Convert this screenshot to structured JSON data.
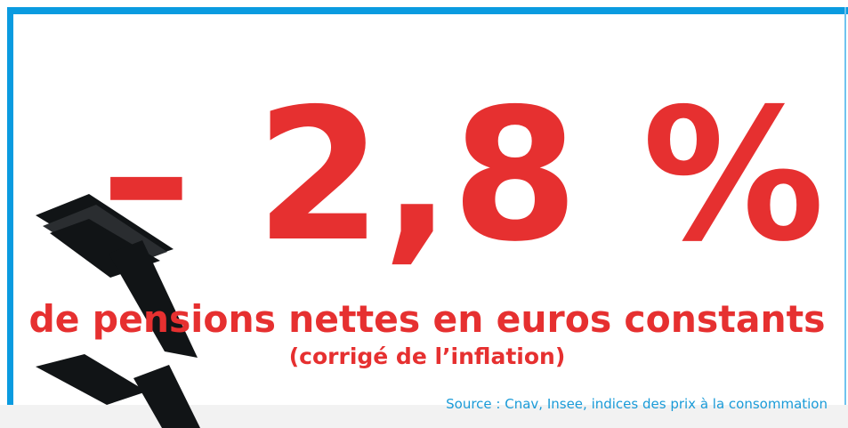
{
  "headline": "– 2,8 %",
  "subtitle": "de pensions nettes en euros constants",
  "note": "(corrigé de l’inflation)",
  "source": "Source : Cnav, Insee, indices des prix à la consommation"
}
